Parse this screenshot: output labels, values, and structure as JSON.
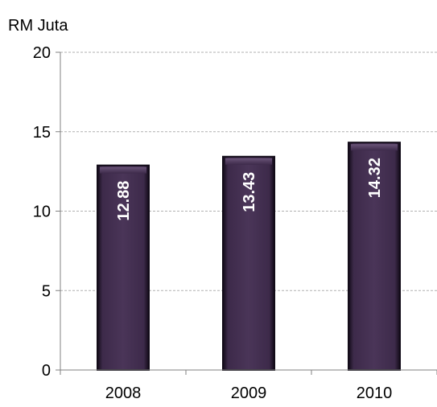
{
  "chart_data": {
    "type": "bar",
    "ylabel": "RM Juta",
    "categories": [
      "2008",
      "2009",
      "2010"
    ],
    "values": [
      12.88,
      13.43,
      14.32
    ],
    "data_labels": [
      "12.88",
      "13.43",
      "14.32"
    ],
    "ylim": [
      0,
      20
    ],
    "yticks": [
      "0",
      "5",
      "10",
      "15",
      "20"
    ],
    "grid": true,
    "legend": "none",
    "colors": {
      "bar_fill": "#3d2a4a",
      "bar_edge": "#120b18",
      "bar_highlight": "#6a5478",
      "grid": "#b0b0b0",
      "axis": "#808080"
    }
  }
}
